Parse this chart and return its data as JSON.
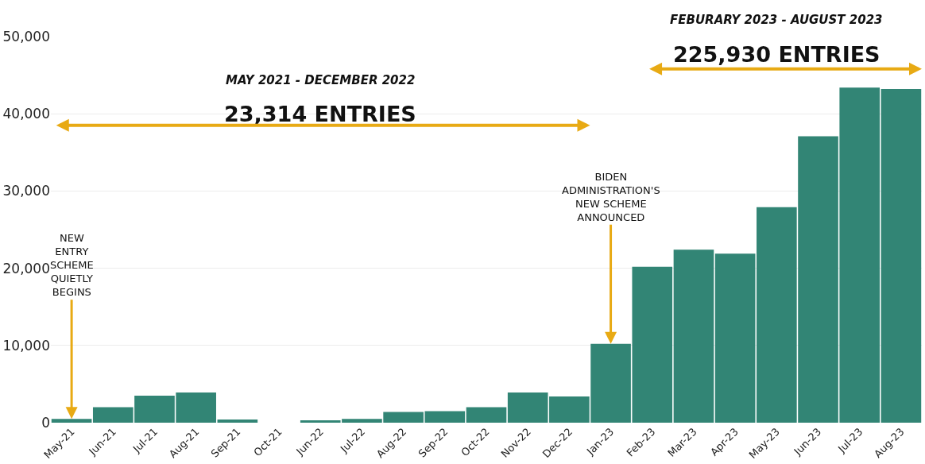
{
  "chart_data": {
    "type": "bar",
    "categories": [
      "May-21",
      "Jun-21",
      "Jul-21",
      "Aug-21",
      "Sep-21",
      "Oct-21",
      "Jun-22",
      "Jul-22",
      "Aug-22",
      "Sep-22",
      "Oct-22",
      "Nov-22",
      "Dec-22",
      "Jan-23",
      "Feb-23",
      "Mar-23",
      "Apr-23",
      "May-23",
      "Jun-23",
      "Jul-23",
      "Aug-23"
    ],
    "values": [
      500,
      2000,
      3500,
      3900,
      400,
      0,
      300,
      500,
      1400,
      1500,
      2000,
      3900,
      3400,
      10200,
      20200,
      22400,
      21900,
      27900,
      37100,
      43400,
      43200
    ],
    "color": "#328575",
    "ylim": [
      0,
      50000
    ],
    "yticks": [
      {
        "value": 0,
        "label": "0"
      },
      {
        "value": 10000,
        "label": "10,000"
      },
      {
        "value": 20000,
        "label": "20,000"
      },
      {
        "value": 30000,
        "label": "30,000"
      },
      {
        "value": 40000,
        "label": "40,000"
      },
      {
        "value": 50000,
        "label": "50,000"
      }
    ],
    "grid": "y",
    "annotations": [
      "MAY 2021 - DECEMBER 2022",
      "23,314 ENTRIES",
      "FEBURARY 2023 - AUGUST 2023",
      "225,930 ENTRIES",
      {
        "text": "NEW ENTRY SCHEME QUIETLY BEGINS",
        "x": "May-21",
        "y": 500
      },
      {
        "text": "BIDEN ADMINISTRATION'S NEW SCHEME ANNOUNCED",
        "x": "Jan-23",
        "y": 10200
      }
    ]
  }
}
